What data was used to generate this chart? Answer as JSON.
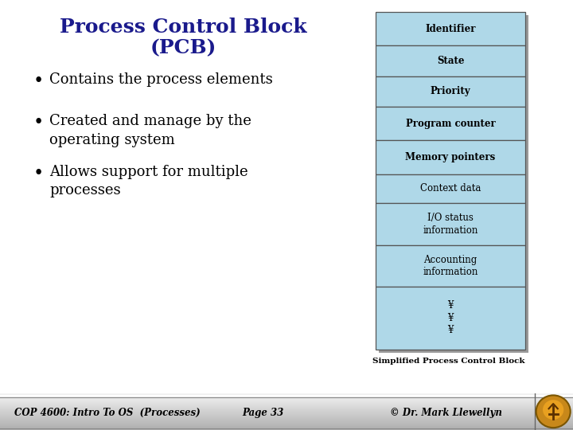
{
  "title_line1": "Process Control Block",
  "title_line2": "(PCB)",
  "title_color": "#1a1a8c",
  "bullet_points": [
    "Contains the process elements",
    "Created and manage by the\noperating system",
    "Allows support for multiple\nprocesses"
  ],
  "bullet_color": "#000000",
  "bg_color": "#ffffff",
  "pcb_blocks": [
    "Identifier",
    "State",
    "Priority",
    "Program counter",
    "Memory pointers",
    "Context data",
    "I/O status\ninformation",
    "Accounting\ninformation",
    "¥\n¥\n¥"
  ],
  "pcb_block_bold": [
    true,
    true,
    true,
    true,
    true,
    false,
    false,
    false,
    false
  ],
  "pcb_block_color": "#afd8e8",
  "pcb_border_color": "#555555",
  "pcb_text_color": "#000000",
  "caption": "Simplified Process Control Block",
  "footer_left": "COP 4600: Intro To OS  (Processes)",
  "footer_center": "Page 33",
  "footer_right": "© Dr. Mark Llewellyn",
  "footer_bg": "#b0b0b0",
  "footer_text_color": "#000000"
}
